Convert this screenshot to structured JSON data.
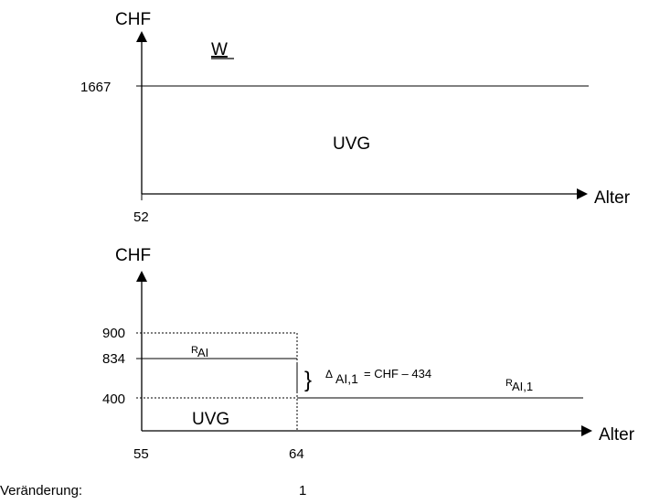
{
  "chart_data": [
    {
      "type": "line",
      "ylabel": "CHF",
      "xlabel": "Alter",
      "title": "W",
      "x_start_tick": "52",
      "y_ticks": [
        "1667"
      ],
      "series": [
        {
          "label": "UVG",
          "x": [
            52,
            100
          ],
          "y": [
            1667,
            1667
          ]
        }
      ]
    },
    {
      "type": "line",
      "ylabel": "CHF",
      "xlabel": "Alter",
      "x_ticks": [
        "55",
        "64"
      ],
      "y_ticks": [
        "900",
        "834",
        "400"
      ],
      "area_label": "UVG",
      "series": [
        {
          "label_main": "R",
          "label_sub": "AI",
          "x": [
            55,
            64
          ],
          "y": [
            834,
            834
          ]
        },
        {
          "label_main": "R",
          "label_sub": "AI,1",
          "x": [
            64,
            100
          ],
          "y": [
            400,
            400
          ]
        }
      ],
      "annotation": {
        "brace": "}",
        "symbol": "Δ",
        "sub": "AI,1",
        "text": "= CHF  – 434"
      }
    }
  ],
  "footer": {
    "label": "Veränderung:",
    "value": "1"
  }
}
